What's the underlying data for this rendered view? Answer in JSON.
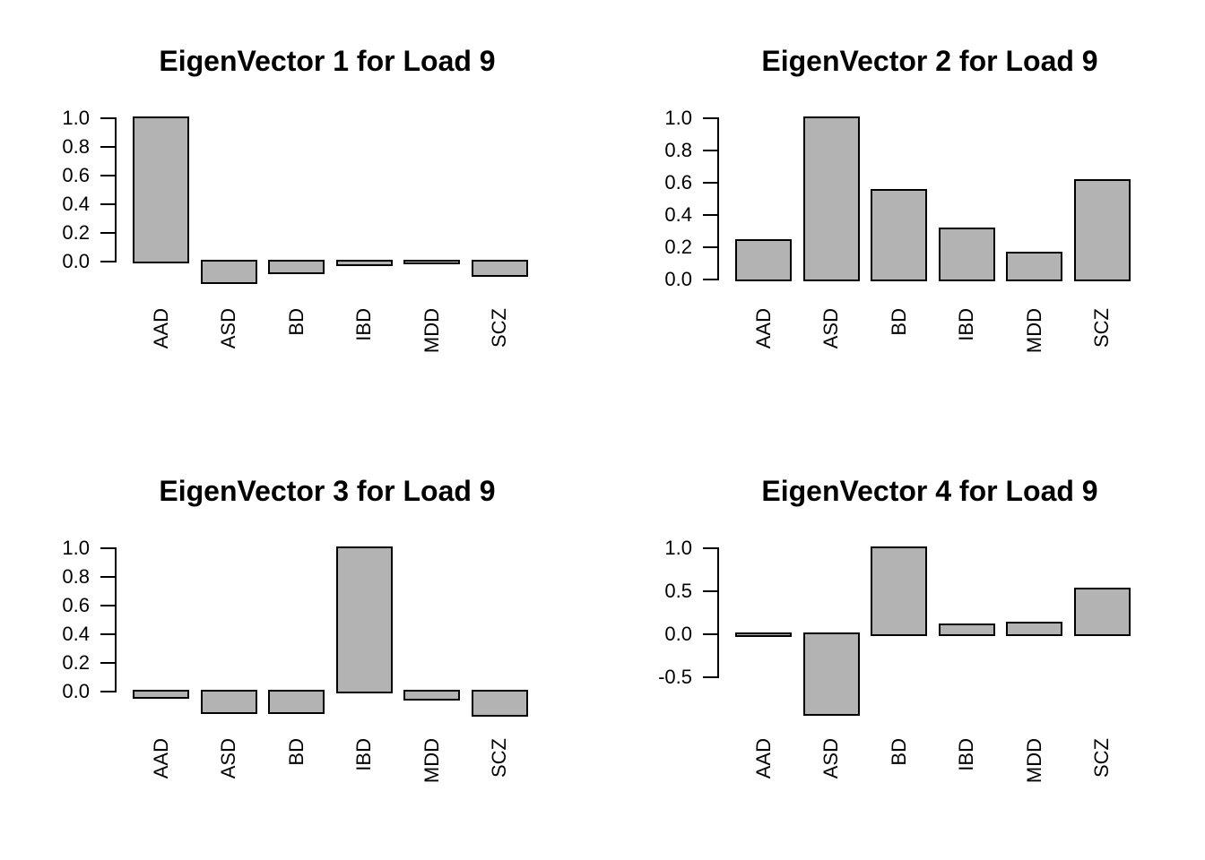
{
  "figure": {
    "background": "#ffffff",
    "text_color": "#000000"
  },
  "chart_data": [
    {
      "type": "bar",
      "title": "EigenVector 1 for Load 9",
      "categories": [
        "AAD",
        "ASD",
        "BD",
        "IBD",
        "MDD",
        "SCZ"
      ],
      "values": [
        1.0,
        -0.145,
        -0.075,
        -0.02,
        -0.005,
        -0.095
      ],
      "ylim": [
        -0.2,
        1.05
      ],
      "yticks": [
        0.0,
        0.2,
        0.4,
        0.6,
        0.8,
        1.0
      ],
      "ytick_labels": [
        "0.0",
        "0.2",
        "0.4",
        "0.6",
        "0.8",
        "1.0"
      ],
      "grid": false,
      "legend": "none",
      "bar_fill": "#b3b3b3",
      "bar_stroke": "#000000"
    },
    {
      "type": "bar",
      "title": "EigenVector 2 for Load 9",
      "categories": [
        "AAD",
        "ASD",
        "BD",
        "IBD",
        "MDD",
        "SCZ"
      ],
      "values": [
        0.24,
        1.0,
        0.55,
        0.31,
        0.16,
        0.61
      ],
      "ylim": [
        0.0,
        1.05
      ],
      "yticks": [
        0.0,
        0.2,
        0.4,
        0.6,
        0.8,
        1.0
      ],
      "ytick_labels": [
        "0.0",
        "0.2",
        "0.4",
        "0.6",
        "0.8",
        "1.0"
      ],
      "grid": false,
      "legend": "none",
      "bar_fill": "#b3b3b3",
      "bar_stroke": "#000000"
    },
    {
      "type": "bar",
      "title": "EigenVector 3 for Load 9",
      "categories": [
        "AAD",
        "ASD",
        "BD",
        "IBD",
        "MDD",
        "SCZ"
      ],
      "values": [
        -0.04,
        -0.145,
        -0.145,
        1.0,
        -0.05,
        -0.165
      ],
      "ylim": [
        -0.2,
        1.05
      ],
      "yticks": [
        0.0,
        0.2,
        0.4,
        0.6,
        0.8,
        1.0
      ],
      "ytick_labels": [
        "0.0",
        "0.2",
        "0.4",
        "0.6",
        "0.8",
        "1.0"
      ],
      "grid": false,
      "legend": "none",
      "bar_fill": "#b3b3b3",
      "bar_stroke": "#000000"
    },
    {
      "type": "bar",
      "title": "EigenVector 4 for Load 9",
      "categories": [
        "AAD",
        "ASD",
        "BD",
        "IBD",
        "MDD",
        "SCZ"
      ],
      "values": [
        -0.01,
        -0.93,
        1.0,
        0.1,
        0.12,
        0.52
      ],
      "ylim": [
        -0.95,
        1.05
      ],
      "yticks": [
        1.0,
        0.5,
        0.0,
        -0.5
      ],
      "ytick_labels": [
        "1.0",
        "0.5",
        "0.0",
        "-0.5"
      ],
      "grid": false,
      "legend": "none",
      "bar_fill": "#b3b3b3",
      "bar_stroke": "#000000"
    }
  ]
}
